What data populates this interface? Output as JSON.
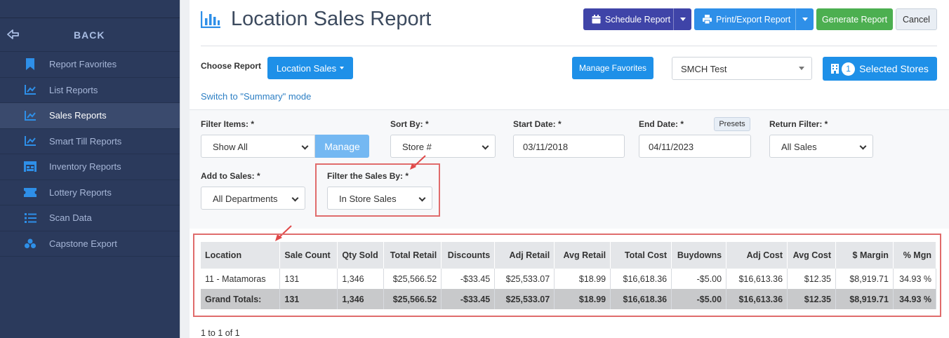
{
  "sidebar": {
    "back_label": "BACK",
    "items": [
      {
        "label": "Report Favorites",
        "icon": "bookmark-icon"
      },
      {
        "label": "List Reports",
        "icon": "chart-line-icon"
      },
      {
        "label": "Sales Reports",
        "icon": "chart-line-icon",
        "active": true
      },
      {
        "label": "Smart Till Reports",
        "icon": "chart-line-icon"
      },
      {
        "label": "Inventory Reports",
        "icon": "warehouse-icon"
      },
      {
        "label": "Lottery Reports",
        "icon": "ticket-icon"
      },
      {
        "label": "Scan Data",
        "icon": "list-icon"
      },
      {
        "label": "Capstone Export",
        "icon": "boxes-icon"
      }
    ]
  },
  "header": {
    "title": "Location Sales Report",
    "schedule_label": "Schedule Report",
    "print_label": "Print/Export Report",
    "generate_label": "Generate Report",
    "cancel_label": "Cancel"
  },
  "report": {
    "choose_label": "Choose Report",
    "choose_value": "Location Sales",
    "manage_favorites_label": "Manage Favorites",
    "store_select_value": "SMCH Test",
    "selected_stores_count": "1",
    "selected_stores_label": "Selected Stores",
    "summary_link": "Switch to \"Summary\" mode"
  },
  "filters": {
    "filter_items_label": "Filter Items: *",
    "filter_items_value": "Show All",
    "manage_label": "Manage",
    "sort_by_label": "Sort By: *",
    "sort_by_value": "Store #",
    "start_date_label": "Start Date: *",
    "start_date_value": "03/11/2018",
    "end_date_label": "End Date: *",
    "end_date_value": "04/11/2023",
    "presets_label": "Presets",
    "return_filter_label": "Return Filter: *",
    "return_filter_value": "All Sales",
    "add_to_sales_label": "Add to Sales: *",
    "add_to_sales_value": "All Departments",
    "filter_sales_by_label": "Filter the Sales By: *",
    "filter_sales_by_value": "In Store Sales"
  },
  "table": {
    "headers": [
      "Location",
      "Sale Count",
      "Qty Sold",
      "Total Retail",
      "Discounts",
      "Adj Retail",
      "Avg Retail",
      "Total Cost",
      "Buydowns",
      "Adj Cost",
      "Avg Cost",
      "$ Margin",
      "% Mgn"
    ],
    "rows": [
      [
        "11 - Matamoras",
        "131",
        "1,346",
        "$25,566.52",
        "-$33.45",
        "$25,533.07",
        "$18.99",
        "$16,618.36",
        "-$5.00",
        "$16,613.36",
        "$12.35",
        "$8,919.71",
        "34.93 %"
      ]
    ],
    "totals": [
      "Grand Totals:",
      "131",
      "1,346",
      "$25,566.52",
      "-$33.45",
      "$25,533.07",
      "$18.99",
      "$16,618.36",
      "-$5.00",
      "$16,613.36",
      "$12.35",
      "$8,919.71",
      "34.93 %"
    ],
    "pager": "1 to 1 of 1"
  },
  "colors": {
    "sidebar_bg": "#2b3a5c",
    "primary": "#1e90e8",
    "schedule": "#3f44a8",
    "generate": "#4caf50",
    "highlight": "#e06c6c"
  }
}
